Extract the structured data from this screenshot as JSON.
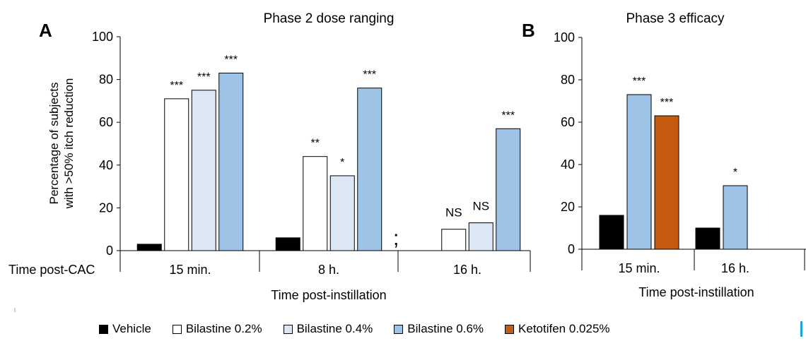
{
  "panels": [
    {
      "letter": "A",
      "title": "Phase 2 dose ranging",
      "ylabel_line1": "Percentage of subjects",
      "ylabel_line2": "with >50% itch reduction",
      "xlabel": "Time post-instillation",
      "row_label": "Time post-CAC",
      "break_mark": ";"
    },
    {
      "letter": "B",
      "title": "Phase 3 efficacy",
      "xlabel": "Time post-instillation"
    }
  ],
  "legend": [
    {
      "label": "Vehicle",
      "color": "#000000"
    },
    {
      "label": "Bilastine 0.2%",
      "color": "#ffffff"
    },
    {
      "label": "Bilastine 0.4%",
      "color": "#dbe7f4"
    },
    {
      "label": "Bilastine 0.6%",
      "color": "#9dc3e6"
    },
    {
      "label": "Ketotifen 0.025%",
      "color": "#c55a11"
    }
  ],
  "chart_data": [
    {
      "type": "bar",
      "title": "Phase 2 dose ranging",
      "xlabel": "Time post-instillation",
      "ylabel": "Percentage of subjects with >50% itch reduction",
      "ylim": [
        0,
        100
      ],
      "yticks": [
        0,
        20,
        40,
        60,
        80,
        100
      ],
      "categories": [
        "15 min.",
        "8 h.",
        "16 h."
      ],
      "series": [
        {
          "name": "Vehicle",
          "color": "#000000",
          "values": [
            3,
            6,
            null
          ],
          "annotations": [
            "",
            "",
            ""
          ]
        },
        {
          "name": "Bilastine 0.2%",
          "color": "#ffffff",
          "values": [
            71,
            44,
            10
          ],
          "annotations": [
            "***",
            "**",
            "NS"
          ]
        },
        {
          "name": "Bilastine 0.4%",
          "color": "#dbe7f4",
          "values": [
            75,
            35,
            13
          ],
          "annotations": [
            "***",
            "*",
            "NS"
          ]
        },
        {
          "name": "Bilastine 0.6%",
          "color": "#9dc3e6",
          "values": [
            83,
            76,
            57
          ],
          "annotations": [
            "***",
            "***",
            "***"
          ]
        }
      ],
      "grid": false,
      "legend_position": "bottom"
    },
    {
      "type": "bar",
      "title": "Phase 3 efficacy",
      "xlabel": "Time post-instillation",
      "ylim": [
        0,
        100
      ],
      "yticks": [
        0,
        20,
        40,
        60,
        80,
        100
      ],
      "categories": [
        "15 min.",
        "16 h."
      ],
      "series": [
        {
          "name": "Vehicle",
          "color": "#000000",
          "values": [
            16,
            10
          ],
          "annotations": [
            "",
            ""
          ]
        },
        {
          "name": "Bilastine 0.6%",
          "color": "#9dc3e6",
          "values": [
            73,
            30
          ],
          "annotations": [
            "***",
            "*"
          ]
        },
        {
          "name": "Ketotifen 0.025%",
          "color": "#c55a11",
          "values": [
            63,
            null
          ],
          "annotations": [
            "***",
            ""
          ]
        }
      ],
      "grid": false,
      "legend_position": "bottom"
    }
  ]
}
